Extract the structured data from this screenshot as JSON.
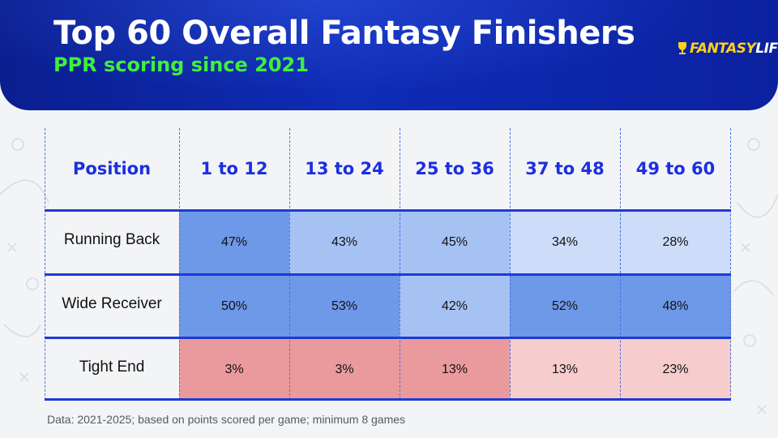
{
  "header": {
    "title": "Top 60 Overall Fantasy Finishers",
    "subtitle": "PPR scoring since 2021",
    "logo_text_a": "FANTASY",
    "logo_text_b": "LIFE"
  },
  "chart_data": {
    "type": "table",
    "column_header": "Position",
    "columns": [
      "1 to 12",
      "13 to 24",
      "25 to 36",
      "37 to 48",
      "49 to 60"
    ],
    "rows": [
      {
        "label": "Running Back",
        "values": [
          47,
          43,
          45,
          34,
          28
        ],
        "display": [
          "47%",
          "43%",
          "45%",
          "34%",
          "28%"
        ]
      },
      {
        "label": "Wide Receiver",
        "values": [
          50,
          53,
          42,
          52,
          48
        ],
        "display": [
          "50%",
          "53%",
          "42%",
          "52%",
          "48%"
        ]
      },
      {
        "label": "Tight End",
        "values": [
          3,
          3,
          13,
          13,
          23
        ],
        "display": [
          "3%",
          "3%",
          "13%",
          "13%",
          "23%"
        ]
      }
    ],
    "cell_colors": [
      [
        "#6e98e8",
        "#a6c2f3",
        "#a6c2f3",
        "#cddcf8",
        "#cddcf8"
      ],
      [
        "#6e98e8",
        "#6e98e8",
        "#a6c2f3",
        "#6e98e8",
        "#6e98e8"
      ],
      [
        "#ea9a9c",
        "#ea9a9c",
        "#ea9a9c",
        "#f6cccd",
        "#f6cccd"
      ]
    ],
    "footnote": "Data: 2021-2025; based on points scored per game; minimum 8 games"
  },
  "colors": {
    "banner": "#0e2cb5",
    "title": "#ffffff",
    "subtitle": "#3ff03a",
    "header_text": "#1b2fe0",
    "rule": "#1e3ad6"
  }
}
